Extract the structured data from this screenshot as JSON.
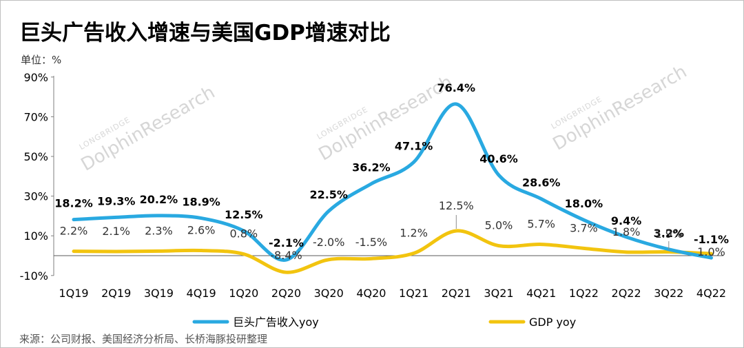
{
  "chart_data": {
    "type": "line",
    "title": "巨头广告收入增速与美国GDP增速对比",
    "unit_label": "单位：%",
    "source": "来源：公司财报、美国经济分析局、长桥海豚投研整理",
    "watermark": {
      "text": "DolphinResearch",
      "sub": "LONGBRIDGE"
    },
    "categories": [
      "1Q19",
      "2Q19",
      "3Q19",
      "4Q19",
      "1Q20",
      "2Q20",
      "3Q20",
      "4Q20",
      "1Q21",
      "2Q21",
      "3Q21",
      "4Q21",
      "1Q22",
      "2Q22",
      "3Q22",
      "4Q22"
    ],
    "ylim": [
      -10,
      90
    ],
    "yticks": [
      -10,
      10,
      30,
      50,
      70,
      90
    ],
    "ytick_labels": [
      "-10%",
      "10%",
      "30%",
      "50%",
      "70%",
      "90%"
    ],
    "series": [
      {
        "name": "巨头广告收入yoy",
        "color": "#29a9e1",
        "values": [
          18.2,
          19.3,
          20.2,
          18.9,
          12.5,
          -2.1,
          22.5,
          36.2,
          47.1,
          76.4,
          40.6,
          28.6,
          18.0,
          9.4,
          3.2,
          -1.1
        ],
        "labels": [
          "18.2%",
          "19.3%",
          "20.2%",
          "18.9%",
          "12.5%",
          "-2.1%",
          "22.5%",
          "36.2%",
          "47.1%",
          "76.4%",
          "40.6%",
          "28.6%",
          "18.0%",
          "9.4%",
          "3.2%",
          "-1.1%"
        ]
      },
      {
        "name": "GDP yoy",
        "color": "#f2c40f",
        "values": [
          2.2,
          2.1,
          2.3,
          2.6,
          0.8,
          -8.4,
          -2.0,
          -1.5,
          1.2,
          12.5,
          5.0,
          5.7,
          3.7,
          1.8,
          1.9,
          1.0
        ],
        "labels": [
          "2.2%",
          "2.1%",
          "2.3%",
          "2.6%",
          "0.8%",
          "-8.4%",
          "-2.0%",
          "-1.5%",
          "1.2%",
          "12.5%",
          "5.0%",
          "5.7%",
          "3.7%",
          "1.8%",
          "1.9%",
          "1.0%"
        ]
      }
    ]
  }
}
